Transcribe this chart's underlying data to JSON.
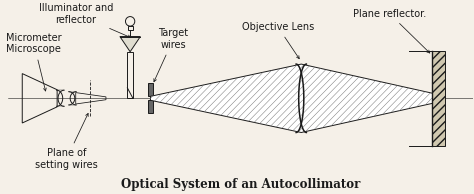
{
  "title": "Optical System of an Autocollimator",
  "title_fontsize": 8.5,
  "title_style": "bold",
  "bg_color": "#f5f0e8",
  "line_color": "#1a1a1a",
  "labels": {
    "illuminator": "Illuminator and\nreflector",
    "microscope": "Micrometer\nMicroscope",
    "target_wires": "Target\nwires",
    "objective_lens": "Objective Lens",
    "plane_reflector": "Plane reflector.",
    "plane_setting": "Plane of\nsetting wires"
  },
  "label_fontsize": 7.0,
  "figsize": [
    4.74,
    1.94
  ],
  "dpi": 100
}
